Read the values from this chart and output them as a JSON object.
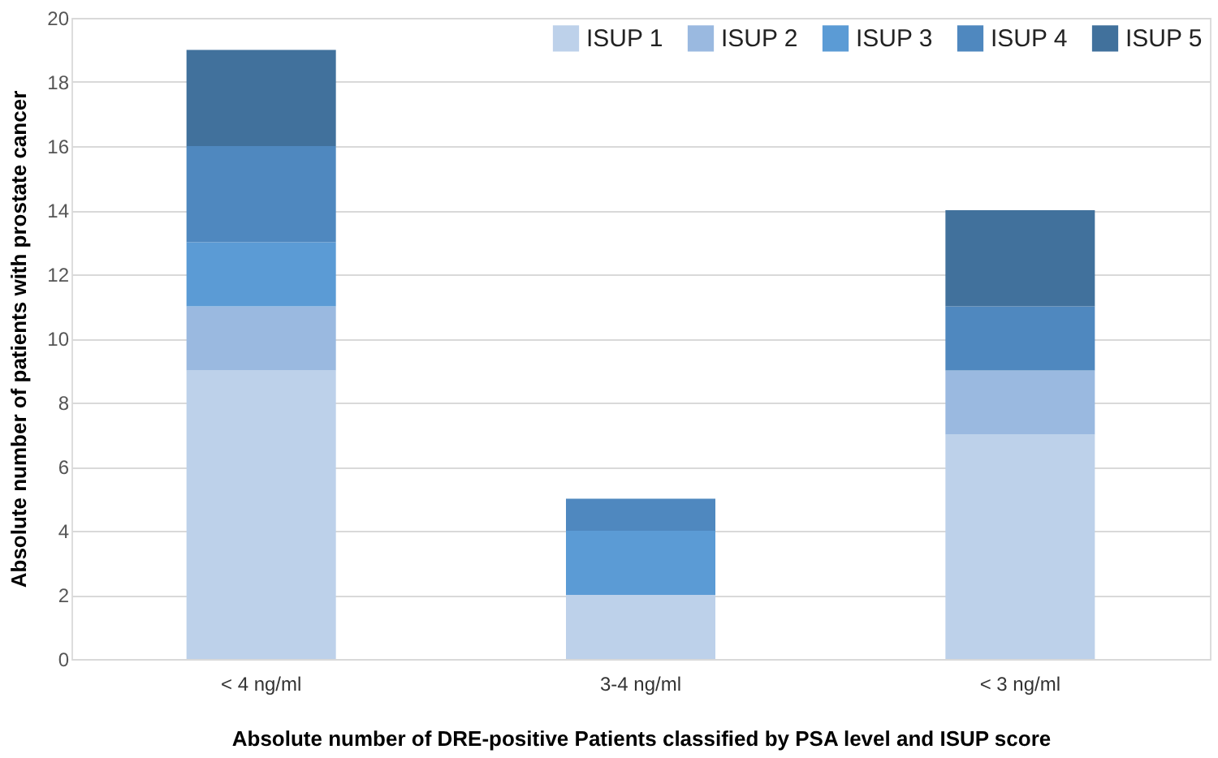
{
  "chart_data": {
    "type": "bar",
    "stacked": true,
    "xlabel": "Absolute number of DRE-positive Patients classified by PSA level and ISUP score",
    "ylabel": "Absolute number of patients with prostate cancer",
    "categories": [
      "< 4 ng/ml",
      "3-4 ng/ml",
      "< 3 ng/ml"
    ],
    "series": [
      {
        "name": "ISUP 1",
        "color": "#bdd1ea",
        "values": [
          9,
          2,
          7
        ]
      },
      {
        "name": "ISUP 2",
        "color": "#9ab9e0",
        "values": [
          2,
          0,
          2
        ]
      },
      {
        "name": "ISUP 3",
        "color": "#5b9bd5",
        "values": [
          2,
          2,
          0
        ]
      },
      {
        "name": "ISUP 4",
        "color": "#4f88bf",
        "values": [
          3,
          1,
          2
        ]
      },
      {
        "name": "ISUP 5",
        "color": "#41719c",
        "values": [
          3,
          0,
          3
        ]
      }
    ],
    "ylim": [
      0,
      20
    ],
    "yticks": [
      0,
      2,
      4,
      6,
      8,
      10,
      12,
      14,
      16,
      18,
      20
    ],
    "grid": "y",
    "legend": "top right"
  }
}
